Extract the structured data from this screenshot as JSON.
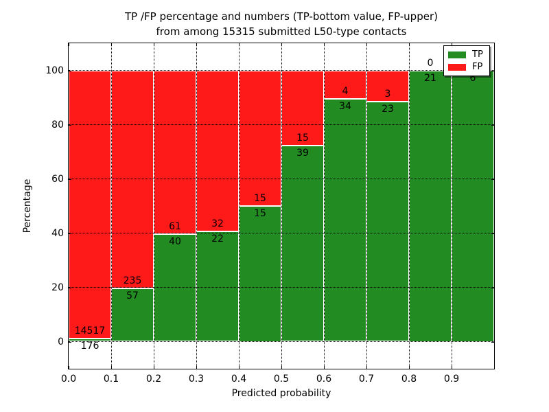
{
  "figure": {
    "title_line1": "TP /FP percentage and numbers (TP-bottom value, FP-upper)",
    "title_line2": "from among 15315 submitted L50-type contacts"
  },
  "axes": {
    "xlabel": "Predicted probability",
    "ylabel": "Percentage",
    "xticks": [
      "0.0",
      "0.1",
      "0.2",
      "0.3",
      "0.4",
      "0.5",
      "0.6",
      "0.7",
      "0.8",
      "0.9"
    ],
    "yticks": [
      "0",
      "20",
      "40",
      "60",
      "80",
      "100"
    ]
  },
  "legend": {
    "items": [
      {
        "label": "TP",
        "color": "#228b22"
      },
      {
        "label": "FP",
        "color": "#ff1a1a"
      }
    ]
  },
  "colors": {
    "tp": "#228b22",
    "fp": "#ff1a1a",
    "grid": "#000000",
    "background": "#ffffff",
    "bar_edge": "#ffffff"
  },
  "chart_data": {
    "type": "bar",
    "stacked": true,
    "normalized_to_percent": true,
    "title": "TP /FP percentage and numbers (TP-bottom value, FP-upper) from among 15315 submitted L50-type contacts",
    "xlabel": "Predicted probability",
    "ylabel": "Percentage",
    "total_submitted": 15315,
    "bin_edges": [
      0.0,
      0.1,
      0.2,
      0.3,
      0.4,
      0.5,
      0.6,
      0.7,
      0.8,
      0.9,
      1.0
    ],
    "categories": [
      "0.0-0.1",
      "0.1-0.2",
      "0.2-0.3",
      "0.3-0.4",
      "0.4-0.5",
      "0.5-0.6",
      "0.6-0.7",
      "0.7-0.8",
      "0.8-0.9",
      "0.9-1.0"
    ],
    "series": [
      {
        "name": "TP",
        "color": "#228b22",
        "values": [
          176,
          57,
          40,
          22,
          15,
          39,
          34,
          23,
          21,
          6
        ]
      },
      {
        "name": "FP",
        "color": "#ff1a1a",
        "values": [
          14517,
          235,
          61,
          32,
          15,
          15,
          4,
          3,
          0,
          0
        ]
      }
    ],
    "bar_percent_tp": [
      1.2,
      19.5,
      39.6,
      40.7,
      50.0,
      72.2,
      89.5,
      88.5,
      100.0,
      100.0
    ],
    "value_labels": "TP count below segment boundary, FP count above segment boundary",
    "xlim": [
      0.0,
      1.0
    ],
    "ylim": [
      -10,
      110
    ],
    "grid": true,
    "grid_style": "dotted",
    "legend_position": "upper right"
  }
}
